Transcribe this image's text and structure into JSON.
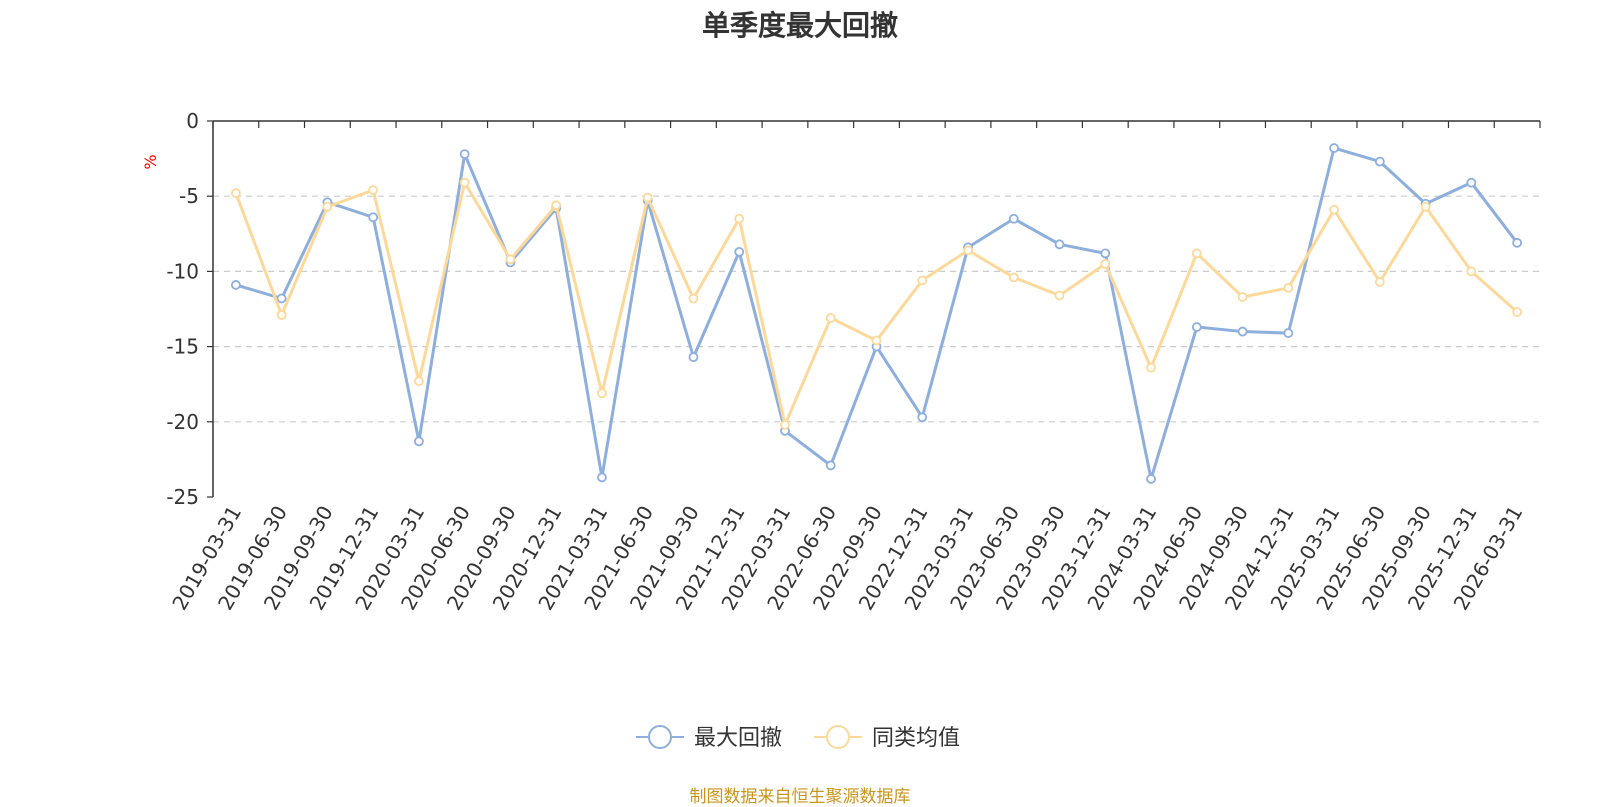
{
  "chart_data": {
    "type": "line",
    "title": "单季度最大回撤",
    "ylabel": "%",
    "ylim": [
      -25,
      0
    ],
    "yticks": [
      0,
      -5,
      -10,
      -15,
      -20,
      -25
    ],
    "grid": true,
    "legend_position": "bottom",
    "categories": [
      "2019-03-31",
      "2019-06-30",
      "2019-09-30",
      "2019-12-31",
      "2020-03-31",
      "2020-06-30",
      "2020-09-30",
      "2020-12-31",
      "2021-03-31",
      "2021-06-30",
      "2021-09-30",
      "2021-12-31",
      "2022-03-31",
      "2022-06-30",
      "2022-09-30",
      "2022-12-31",
      "2023-03-31",
      "2023-06-30",
      "2023-09-30",
      "2023-12-31",
      "2024-03-31",
      "2024-06-30",
      "2024-09-30",
      "2024-12-31",
      "2025-03-31",
      "2025-06-30",
      "2025-09-30",
      "2025-12-31",
      "2026-03-31"
    ],
    "series": [
      {
        "name": "最大回撤",
        "color": "#8eaedb",
        "values": [
          -10.9,
          -11.8,
          -5.4,
          -6.4,
          -21.3,
          -2.2,
          -9.4,
          -5.8,
          -23.7,
          -5.3,
          -15.7,
          -8.7,
          -20.6,
          -22.9,
          -15.0,
          -19.7,
          -8.4,
          -6.5,
          -8.2,
          -8.8,
          -23.8,
          -13.7,
          -14.0,
          -14.1,
          -1.8,
          -2.7,
          -5.5,
          -4.1,
          -8.1
        ]
      },
      {
        "name": "同类均值",
        "color": "#fcd99b",
        "values": [
          -4.8,
          -12.9,
          -5.7,
          -4.6,
          -17.3,
          -4.1,
          -9.2,
          -5.6,
          -18.1,
          -5.1,
          -11.8,
          -6.5,
          -20.2,
          -13.1,
          -14.6,
          -10.6,
          -8.6,
          -10.4,
          -11.6,
          -9.5,
          -16.4,
          -8.8,
          -11.7,
          -11.1,
          -5.9,
          -10.7,
          -5.7,
          -10.0,
          -12.7
        ]
      }
    ],
    "source": "制图数据来自恒生聚源数据库"
  }
}
